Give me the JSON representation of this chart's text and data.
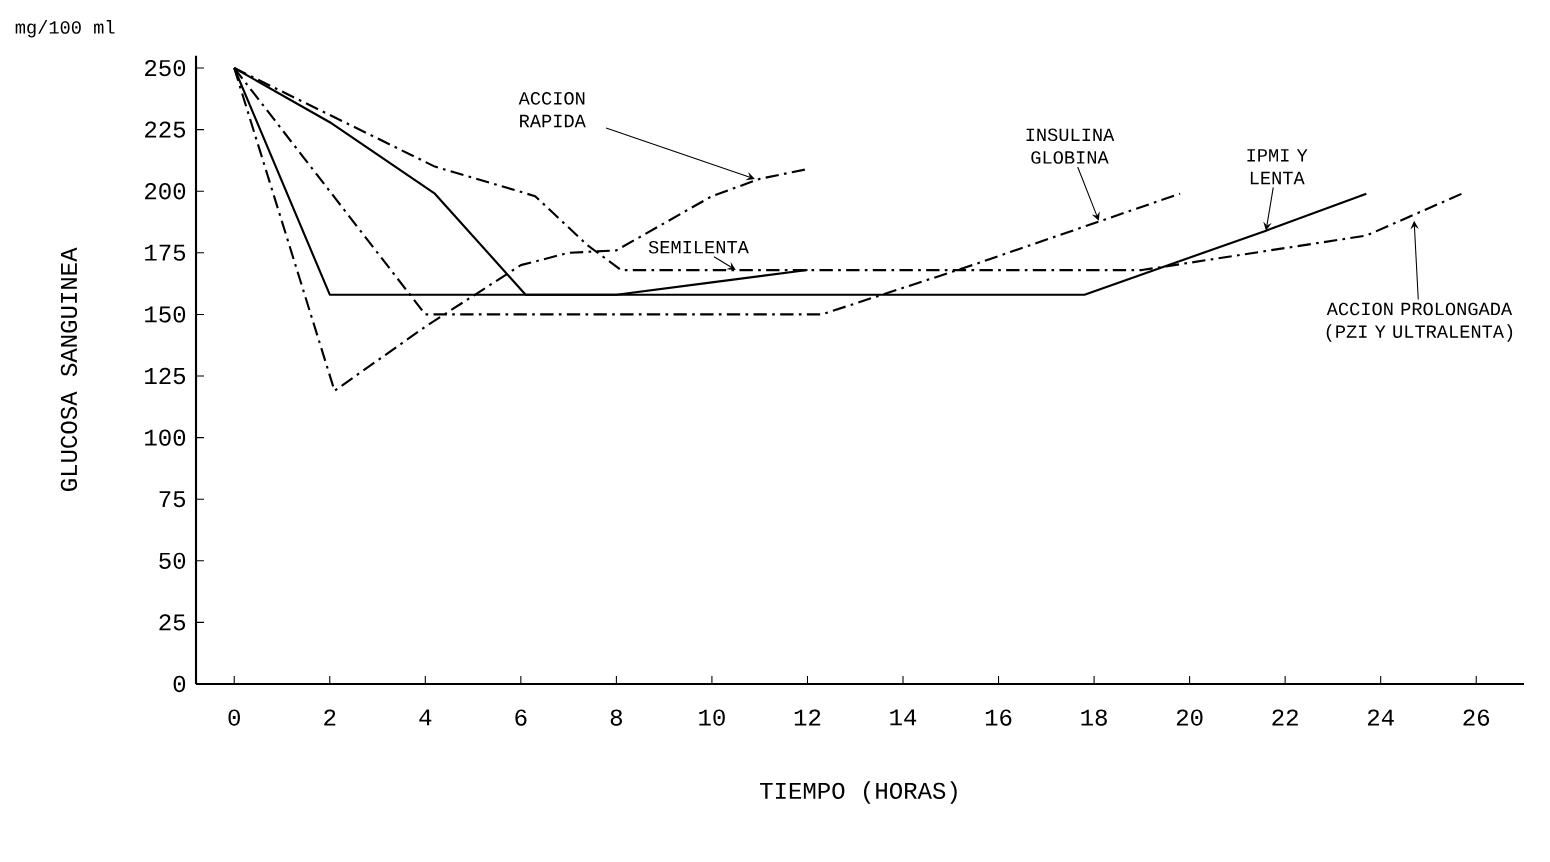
{
  "chart_data": {
    "type": "line",
    "xlabel": "TIEMPO (HORAS)",
    "ylabel": "GLUCOSA SANGUINEA",
    "xlim": [
      -0.8,
      27
    ],
    "xticks": [
      0,
      2,
      4,
      6,
      8,
      10,
      12,
      14,
      16,
      18,
      20,
      22,
      24,
      26
    ],
    "ylim": [
      0,
      255
    ],
    "yticks": [
      0,
      25,
      50,
      75,
      100,
      125,
      150,
      175,
      200,
      225,
      250
    ],
    "grid": false,
    "marker": "none",
    "series": [
      {
        "color": "#000000",
        "line_style": "dashed",
        "x": [
          0,
          2.1,
          4,
          6,
          7,
          8,
          9,
          10,
          11,
          12
        ],
        "values": [
          250,
          119,
          145,
          170,
          175,
          176,
          187,
          198,
          205,
          209
        ]
      },
      {
        "color": "#000000",
        "line_style": "solid",
        "x": [
          0,
          2,
          4.2,
          6.1,
          8,
          10,
          12
        ],
        "values": [
          250,
          228,
          199,
          158,
          158,
          163,
          168
        ]
      },
      {
        "color": "#000000",
        "line_style": "dashed",
        "x": [
          0,
          4,
          12.3,
          15.3,
          19.8
        ],
        "values": [
          250,
          150,
          150,
          169,
          199
        ]
      },
      {
        "color": "#000000",
        "line_style": "solid",
        "x": [
          0,
          2,
          17.8,
          21.6,
          23.7
        ],
        "values": [
          250,
          158,
          158,
          184,
          199
        ]
      },
      {
        "color": "#000000",
        "line_style": "dashed",
        "x": [
          0,
          4.2,
          6.3,
          7.4,
          8.1,
          19,
          23.7,
          25.7
        ],
        "values": [
          250,
          210,
          198,
          178,
          168,
          168,
          182,
          199
        ]
      }
    ],
    "annotations": [
      "mg/100 ml",
      {
        "text": "ACCION RAPIDA",
        "x": 10.9,
        "y": 205
      },
      {
        "text": "SEMILENTA",
        "x": 10.5,
        "y": 168
      },
      {
        "text": "INSULINA GLOBINA",
        "x": 18.1,
        "y": 188
      },
      {
        "text": "IPMI Y LENTA",
        "x": 21.6,
        "y": 184
      },
      {
        "text": "ACCION PROLONGADA (PZI Y ULTRALENTA)",
        "x": 24.7,
        "y": 188
      }
    ]
  }
}
